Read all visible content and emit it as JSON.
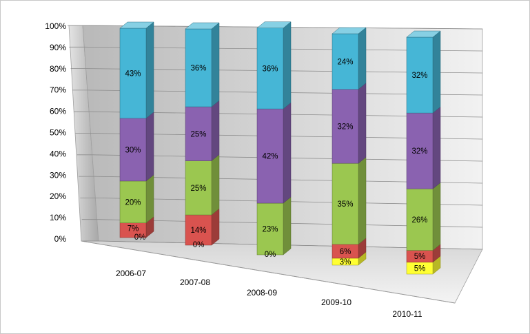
{
  "chart_data": {
    "type": "bar",
    "subtype": "3d-stacked-100",
    "title": "",
    "xlabel": "",
    "ylabel": "",
    "ylim": [
      0,
      100
    ],
    "y_tick_labels": [
      "0%",
      "10%",
      "20%",
      "30%",
      "40%",
      "50%",
      "60%",
      "70%",
      "80%",
      "90%",
      "100%"
    ],
    "categories": [
      "2006-07",
      "2007-08",
      "2008-09",
      "2009-10",
      "2010-11"
    ],
    "legend": "none",
    "grid": true,
    "series": [
      {
        "color": "#ffff33",
        "values": [
          0,
          0,
          0,
          3,
          5
        ],
        "labels": [
          "0%",
          "0%",
          "0%",
          "3%",
          "5%"
        ]
      },
      {
        "color": "#d9534f",
        "values": [
          7,
          14,
          0,
          6,
          5
        ],
        "labels": [
          "7%",
          "14%",
          "",
          "6%",
          "5%"
        ]
      },
      {
        "color": "#9bc750",
        "values": [
          20,
          25,
          23,
          35,
          26
        ],
        "labels": [
          "20%",
          "25%",
          "23%",
          "35%",
          "26%"
        ]
      },
      {
        "color": "#8a62b0",
        "values": [
          30,
          25,
          42,
          32,
          32
        ],
        "labels": [
          "30%",
          "25%",
          "42%",
          "32%",
          "32%"
        ]
      },
      {
        "color": "#46b6d6",
        "values": [
          43,
          36,
          36,
          24,
          32
        ],
        "labels": [
          "43%",
          "36%",
          "36%",
          "24%",
          "32%"
        ]
      }
    ]
  }
}
